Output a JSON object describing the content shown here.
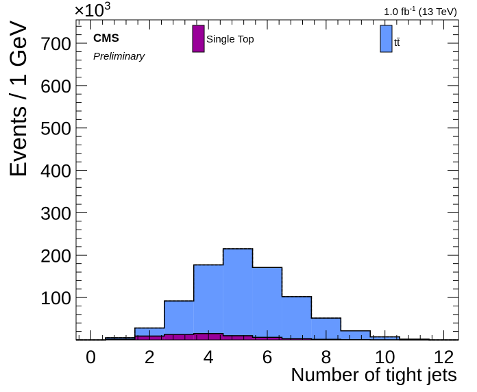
{
  "chart_data": {
    "type": "bar",
    "style": "stacked-histogram",
    "xlabel": "Number of tight jets",
    "ylabel": "Events / 1 GeV",
    "y_multiplier": "×10",
    "y_multiplier_exp": "3",
    "xlim": [
      -0.5,
      12.5
    ],
    "ylim": [
      0,
      755
    ],
    "x_ticks": [
      0,
      2,
      4,
      6,
      8,
      10,
      12
    ],
    "y_ticks": [
      100,
      200,
      300,
      400,
      500,
      600,
      700
    ],
    "bin_edges": [
      -0.5,
      0.5,
      1.5,
      2.5,
      3.5,
      4.5,
      5.5,
      6.5,
      7.5,
      8.5,
      9.5,
      10.5,
      11.5,
      12.5
    ],
    "series": [
      {
        "name": "Single Top",
        "color": "#990099",
        "values": [
          0,
          1.5,
          9,
          13,
          15,
          10,
          6,
          3,
          1.5,
          0.5,
          0.2,
          0.1,
          0
        ]
      },
      {
        "name": "tt̄",
        "color": "#6699ff",
        "values": [
          0,
          3.5,
          19,
          79,
          162,
          205,
          165,
          99,
          50,
          21,
          7,
          2,
          0
        ]
      }
    ],
    "grid": false,
    "legend": "top"
  },
  "labels": {
    "cms": "CMS",
    "preliminary": "Preliminary",
    "lumi_value": "1.0 fb",
    "lumi_exp": "-1",
    "lumi_energy": "(13 TeV)"
  }
}
